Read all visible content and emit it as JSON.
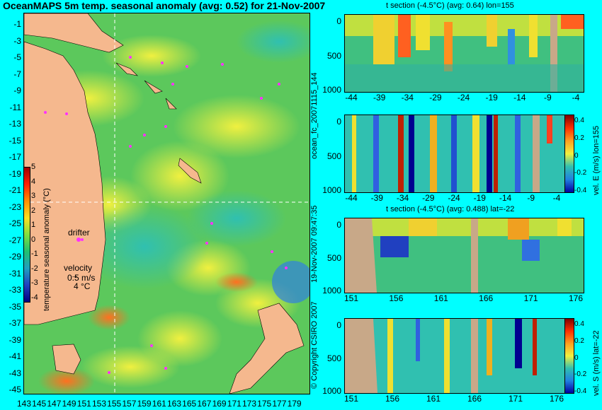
{
  "title": "OceanMAPS 5m temp. seasonal anomaly (avg: 0.52) for 21-Nov-2007",
  "map": {
    "lat_ticks": [
      "-1",
      "-3",
      "-5",
      "-7",
      "-9",
      "-11",
      "-13",
      "-15",
      "-17",
      "-19",
      "-21",
      "-23",
      "-25",
      "-27",
      "-29",
      "-31",
      "-33",
      "-35",
      "-37",
      "-39",
      "-41",
      "-43",
      "-45"
    ],
    "lon_ticks": [
      "143",
      "145",
      "147",
      "149",
      "151",
      "153",
      "155",
      "157",
      "159",
      "161",
      "163",
      "165",
      "167",
      "169",
      "171",
      "173",
      "175",
      "177",
      "179"
    ],
    "colorbar_label": "temperature seasonal anomaly (°C)",
    "colorbar_ticks": [
      "5",
      "4",
      "3",
      "2",
      "1",
      "0",
      "-1",
      "-2",
      "-3",
      "-4"
    ],
    "drifter_label": "drifter",
    "velocity_label": "velocity",
    "velocity_value": "0.5 m/s",
    "velocity_scale": "4 °C",
    "crosshair_lon": "155",
    "crosshair_lat": "-22"
  },
  "sections": {
    "top1": {
      "title": "t section (-4.5°C) (avg: 0.64) lon=155",
      "x_ticks": [
        "-44",
        "-39",
        "-34",
        "-29",
        "-24",
        "-19",
        "-14",
        "-9",
        "-4"
      ],
      "y_ticks": [
        "0",
        "500",
        "1000"
      ]
    },
    "top2": {
      "x_ticks": [
        "-44",
        "-39",
        "-34",
        "-29",
        "-24",
        "-19",
        "-14",
        "-9",
        "-4"
      ],
      "y_ticks": [
        "0",
        "500",
        "1000"
      ],
      "colorbar_label": "vel. E (m/s) lon=155",
      "colorbar_ticks": [
        "0.4",
        "0.2",
        "0",
        "-0.2",
        "-0.4"
      ]
    },
    "bottom1": {
      "title": "t section (-4.5°C) (avg: 0.488) lat=-22",
      "x_ticks": [
        "151",
        "156",
        "161",
        "166",
        "171",
        "176"
      ],
      "y_ticks": [
        "0",
        "500",
        "1000"
      ]
    },
    "bottom2": {
      "x_ticks": [
        "151",
        "156",
        "161",
        "166",
        "171",
        "176"
      ],
      "y_ticks": [
        "0",
        "500",
        "1000"
      ],
      "colorbar_label": "vel. S (m/s) lat=-22",
      "colorbar_ticks": [
        "0.4",
        "0.2",
        "0",
        "-0.2",
        "-0.4"
      ]
    }
  },
  "side_labels": {
    "forecast_id": "ocean_fc_20071115_144",
    "timestamp": "19-Nov-2007 09:47:35",
    "copyright": "© Copyright CSIRO 2007"
  }
}
